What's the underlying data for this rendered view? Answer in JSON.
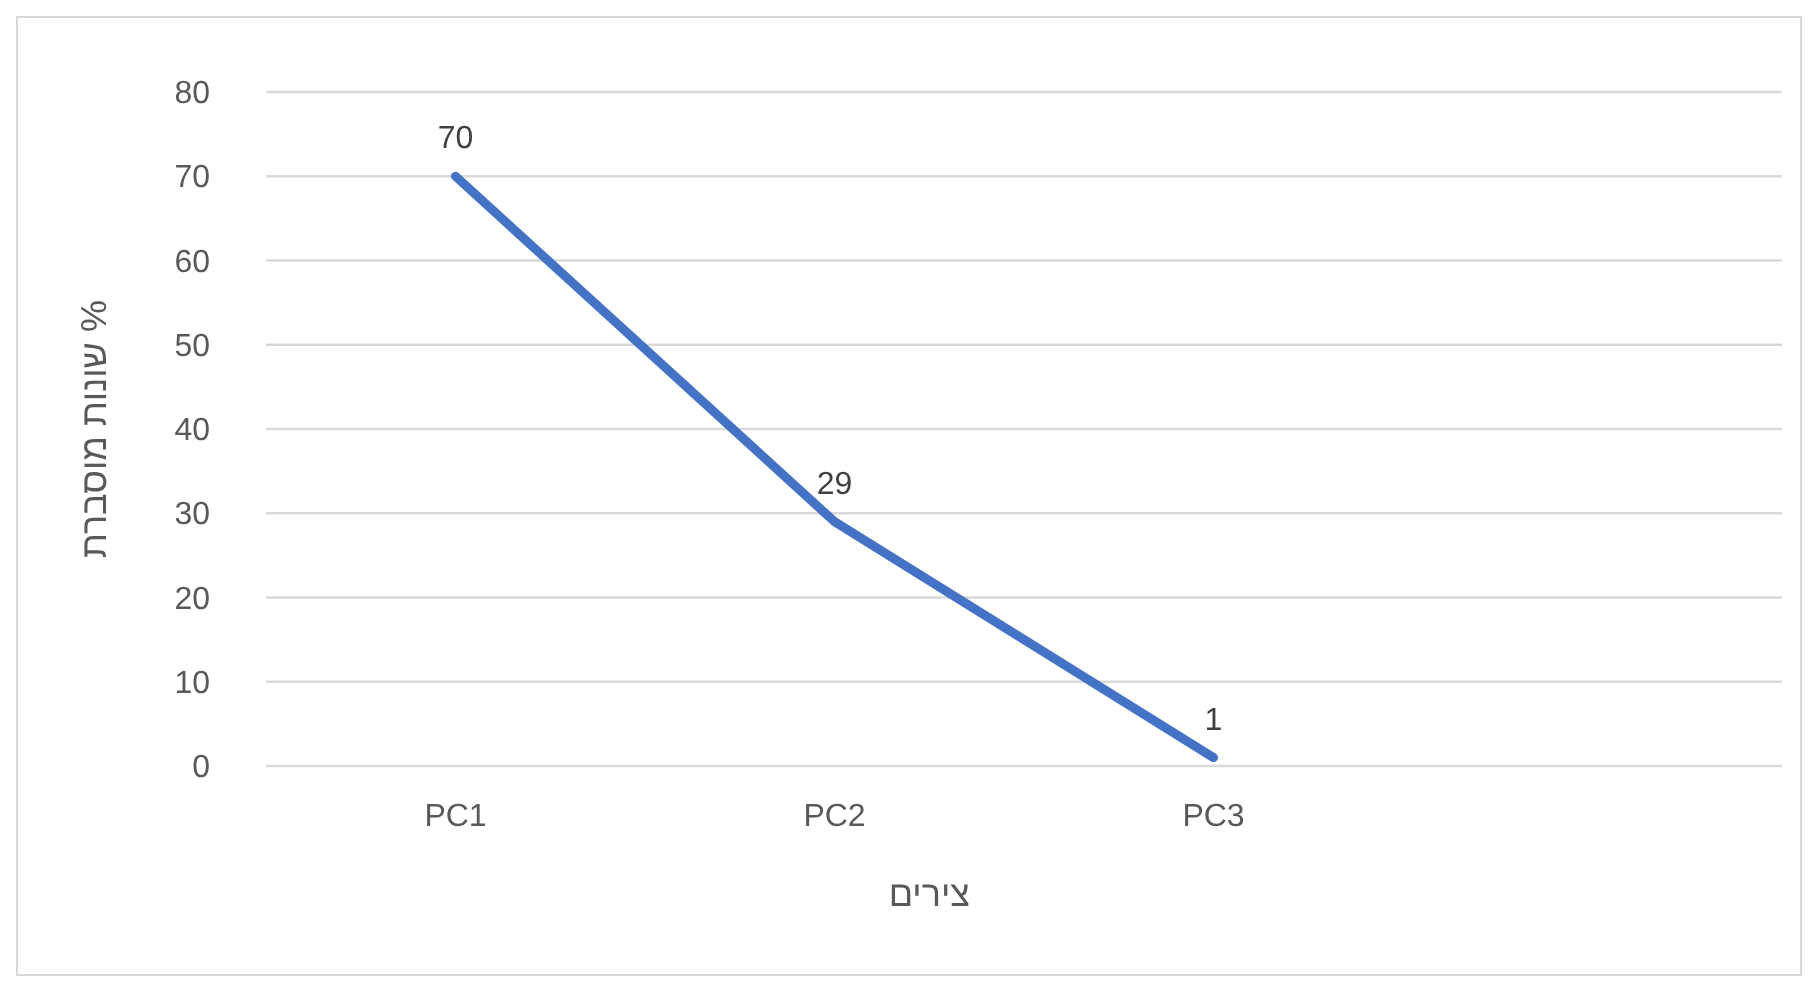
{
  "chart_data": {
    "type": "line",
    "xlabel": "צירים",
    "ylabel": "שונות מוסברת %",
    "categories": [
      "PC1",
      "PC2",
      "PC3",
      null
    ],
    "series": [
      {
        "color": "#4472c4",
        "values": [
          70,
          29,
          1,
          null
        ]
      }
    ],
    "ylim": [
      0,
      80
    ],
    "yticks": [
      0,
      10,
      20,
      30,
      40,
      50,
      60,
      70,
      80
    ],
    "grid": "y",
    "data_labels": true,
    "marker": "none"
  }
}
